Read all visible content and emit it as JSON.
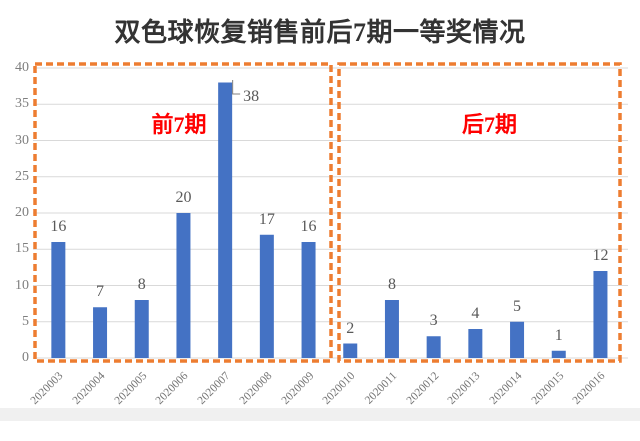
{
  "chart_data": {
    "type": "bar",
    "title": "双色球恢复销售前后7期一等奖情况",
    "categories": [
      "2020003",
      "2020004",
      "2020005",
      "2020006",
      "2020007",
      "2020008",
      "2020009",
      "2020010",
      "2020011",
      "2020012",
      "2020013",
      "2020014",
      "2020015",
      "2020016"
    ],
    "values": [
      16,
      7,
      8,
      20,
      38,
      17,
      16,
      2,
      8,
      3,
      4,
      5,
      1,
      12
    ],
    "xlabel": "",
    "ylabel": "",
    "ylim": [
      0,
      40
    ],
    "ytick_step": 5,
    "grid": true,
    "legend": "none",
    "bar_color": "#4472C4",
    "gridline_color": "#D9D9D9",
    "tick_label_color": "#7f7f7f",
    "value_label_color": "#595959",
    "callout_line_color": "#808080",
    "groups": [
      {
        "label": "前7期",
        "from_index": 0,
        "to_index": 6,
        "box_color": "#ED7D31",
        "label_color": "#FF0000"
      },
      {
        "label": "后7期",
        "from_index": 7,
        "to_index": 13,
        "box_color": "#ED7D31",
        "label_color": "#FF0000"
      }
    ]
  }
}
